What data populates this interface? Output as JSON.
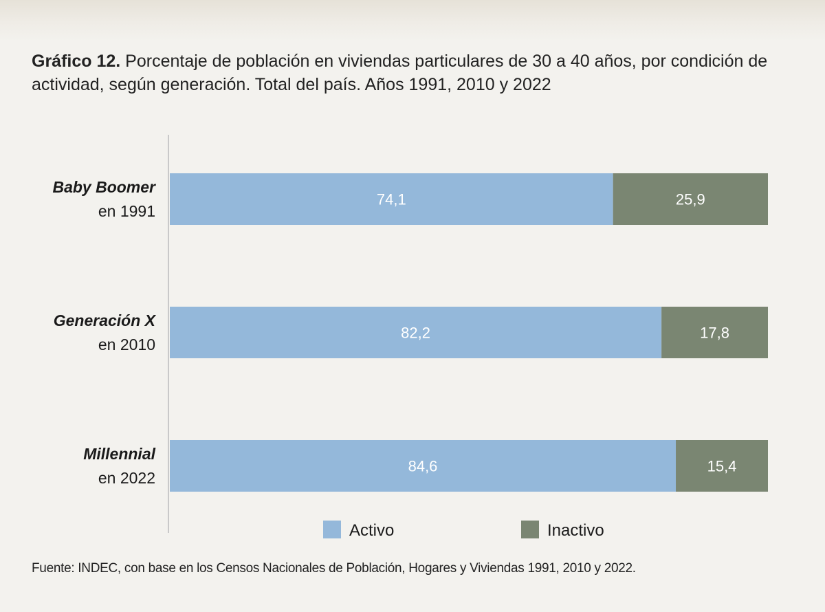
{
  "header": {
    "title_bold": "Gráfico 12.",
    "title_text": " Porcentaje de población en viviendas particulares de 30 a 40 años, por condición de actividad, según generación. Total del país. Años 1991, 2010 y 2022"
  },
  "footer": {
    "source": "Fuente: INDEC, con base en los Censos Nacionales de Población, Hogares y Viviendas 1991, 2010 y 2022."
  },
  "colors": {
    "activo": "#94b8da",
    "inactivo": "#7a8672",
    "axis": "#c9c9c9"
  },
  "chart_data": {
    "type": "bar",
    "orientation": "horizontal",
    "stacked": true,
    "title": "Gráfico 12. Porcentaje de población en viviendas particulares de 30 a 40 años, por condición de actividad, según generación. Total del país. Años 1991, 2010 y 2022",
    "categories": [
      {
        "name": "Baby Boomer",
        "sub": "en 1991"
      },
      {
        "name": "Generación X",
        "sub": "en 2010"
      },
      {
        "name": "Millennial",
        "sub": "en 2022"
      }
    ],
    "series": [
      {
        "name": "Activo",
        "values": [
          74.1,
          82.2,
          84.6
        ],
        "labels": [
          "74,1",
          "82,2",
          "84,6"
        ],
        "color": "#94b8da"
      },
      {
        "name": "Inactivo",
        "values": [
          25.9,
          17.8,
          15.4
        ],
        "labels": [
          "25,9",
          "17,8",
          "15,4"
        ],
        "color": "#7a8672"
      }
    ],
    "xlim": [
      0,
      100
    ],
    "legend": "bottom",
    "grid": false
  }
}
